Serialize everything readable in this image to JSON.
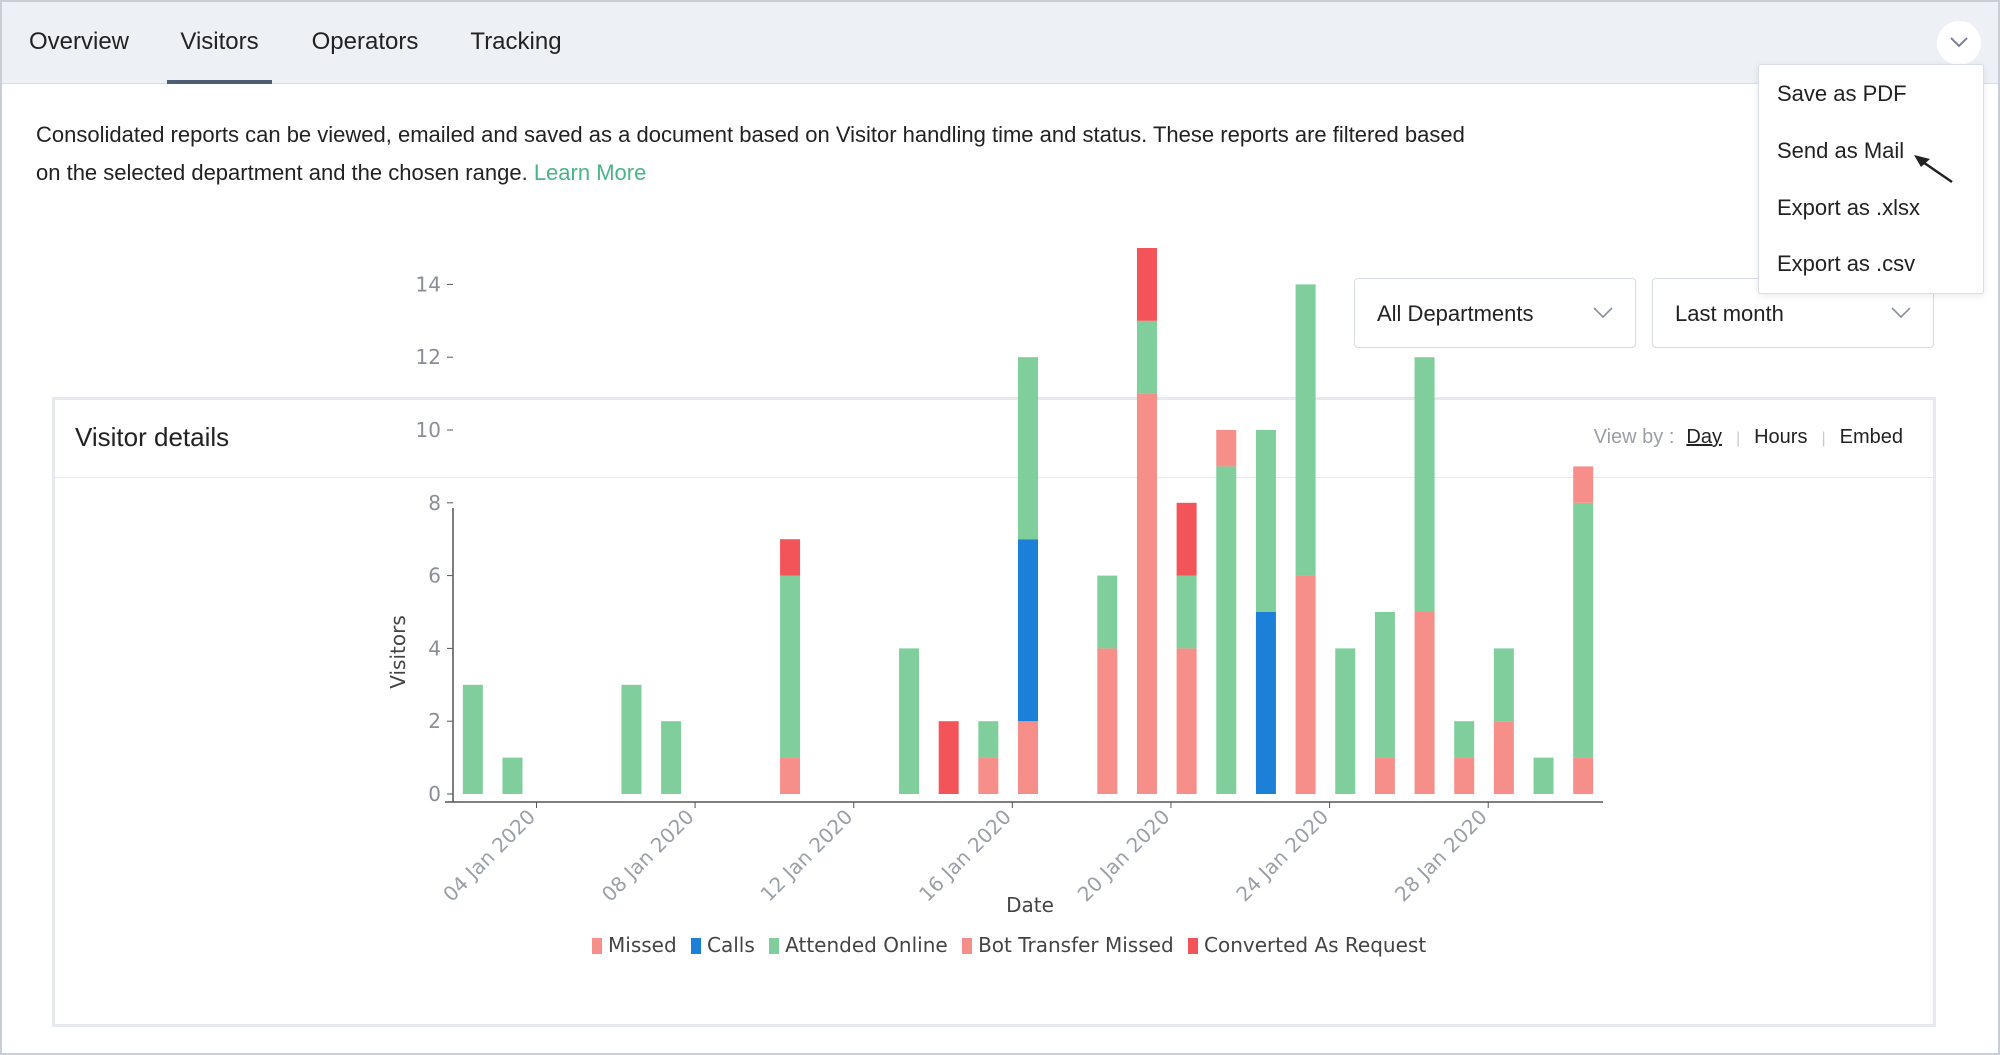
{
  "tabs": [
    {
      "label": "Overview",
      "active": false
    },
    {
      "label": "Visitors",
      "active": true
    },
    {
      "label": "Operators",
      "active": false
    },
    {
      "label": "Tracking",
      "active": false
    }
  ],
  "description": {
    "text_line1": "Consolidated reports can be viewed, emailed and saved as a document based on Visitor handling time and status. These reports are filtered based",
    "text_line2": "on the selected department and the chosen range.",
    "learn_more": "Learn More"
  },
  "filters": {
    "department": "All Departments",
    "range": "Last month"
  },
  "menu": {
    "items": [
      "Save as PDF",
      "Send as Mail",
      "Export as .xlsx",
      "Export as .csv"
    ]
  },
  "card": {
    "title": "Visitor details",
    "view_by_label": "View by :",
    "view_options": [
      "Day",
      "Hours",
      "Embed"
    ],
    "selected_view": "Day"
  },
  "colors": {
    "missed": "#f68e8a",
    "calls": "#1c7fd8",
    "attended_online": "#7fce9c",
    "bot_transfer_missed": "#f68e8a",
    "converted_as_request": "#f25459",
    "link": "#4db389"
  },
  "chart_data": {
    "type": "bar",
    "stacked": true,
    "xlabel": "Date",
    "ylabel": "Visitors",
    "ylim": [
      0,
      15
    ],
    "yticks": [
      0,
      2,
      4,
      6,
      8,
      10,
      12,
      14
    ],
    "categories": [
      "03 Jan 2020",
      "04 Jan 2020",
      "05 Jan 2020",
      "06 Jan 2020",
      "07 Jan 2020",
      "08 Jan 2020",
      "09 Jan 2020",
      "10 Jan 2020",
      "11 Jan 2020",
      "12 Jan 2020",
      "13 Jan 2020",
      "14 Jan 2020",
      "15 Jan 2020",
      "16 Jan 2020",
      "17 Jan 2020",
      "18 Jan 2020",
      "19 Jan 2020",
      "20 Jan 2020",
      "21 Jan 2020",
      "22 Jan 2020",
      "23 Jan 2020",
      "24 Jan 2020",
      "25 Jan 2020",
      "26 Jan 2020",
      "27 Jan 2020",
      "28 Jan 2020",
      "29 Jan 2020",
      "30 Jan 2020",
      "31 Jan 2020"
    ],
    "xtick_labels": [
      "04 Jan 2020",
      "08 Jan 2020",
      "12 Jan 2020",
      "16 Jan 2020",
      "20 Jan 2020",
      "24 Jan 2020",
      "28 Jan 2020"
    ],
    "series": [
      {
        "name": "Missed",
        "values": [
          0,
          0,
          0,
          0,
          0,
          0,
          0,
          0,
          1,
          0,
          0,
          0,
          0,
          1,
          2,
          0,
          4,
          11,
          4,
          0,
          0,
          6,
          0,
          1,
          5,
          1,
          2,
          0,
          1
        ]
      },
      {
        "name": "Calls",
        "values": [
          0,
          0,
          0,
          0,
          0,
          0,
          0,
          0,
          0,
          0,
          0,
          0,
          0,
          0,
          5,
          0,
          0,
          0,
          0,
          0,
          5,
          0,
          0,
          0,
          0,
          0,
          0,
          0,
          0
        ]
      },
      {
        "name": "Attended Online",
        "values": [
          3,
          1,
          0,
          0,
          3,
          2,
          0,
          0,
          5,
          0,
          0,
          4,
          0,
          1,
          5,
          0,
          2,
          2,
          2,
          9,
          5,
          8,
          4,
          4,
          7,
          1,
          2,
          1,
          7
        ]
      },
      {
        "name": "Bot Transfer Missed",
        "values": [
          0,
          0,
          0,
          0,
          0,
          0,
          0,
          0,
          0,
          0,
          0,
          0,
          0,
          0,
          0,
          0,
          0,
          0,
          0,
          1,
          0,
          0,
          0,
          0,
          0,
          0,
          0,
          0,
          1
        ]
      },
      {
        "name": "Converted As Request",
        "values": [
          0,
          0,
          0,
          0,
          0,
          0,
          0,
          0,
          1,
          0,
          0,
          0,
          2,
          0,
          0,
          0,
          0,
          2,
          2,
          0,
          0,
          0,
          0,
          0,
          0,
          0,
          0,
          0,
          0
        ]
      }
    ],
    "legend_position": "bottom",
    "grid": false
  }
}
